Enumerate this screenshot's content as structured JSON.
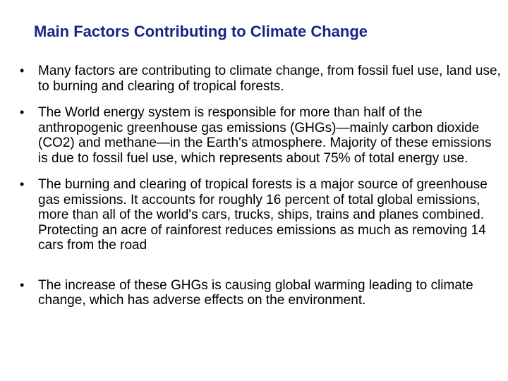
{
  "slide": {
    "title": "Main Factors Contributing to Climate Change",
    "bullet_marker": "•",
    "bullets": [
      "Many factors are contributing to climate change, from fossil fuel use, land use, to burning and clearing of tropical forests.",
      "The World energy system is responsible for more than half of the anthropogenic greenhouse gas emissions (GHGs)—mainly carbon dioxide (CO2) and methane—in the Earth's atmosphere. Majority of these emissions is due to fossil fuel use, which represents about 75% of total energy use.",
      "The burning and clearing of tropical forests is a major source of greenhouse gas emissions. It accounts for roughly 16 percent of total global emissions, more than all of the world's cars, trucks, ships, trains and planes combined. Protecting an acre of rainforest reduces emissions as much as removing 14 cars from the road",
      "The increase of these GHGs is causing global warming leading to climate change, which has adverse effects on the environment."
    ],
    "colors": {
      "title": "#1a2483",
      "text": "#000000",
      "background": "#ffffff"
    }
  }
}
